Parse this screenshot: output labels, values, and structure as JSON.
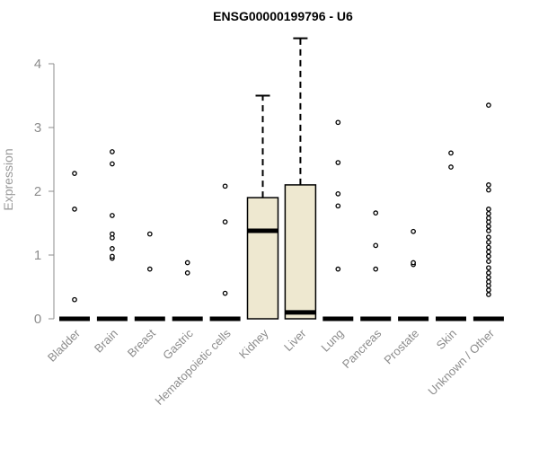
{
  "chart_data": {
    "type": "box",
    "title": "ENSG00000199796 - U6",
    "xlabel": "",
    "ylabel": "Expression",
    "ylim": [
      0,
      4.4
    ],
    "yticks": [
      0,
      1,
      2,
      3,
      4
    ],
    "grid": false,
    "legend": "none",
    "colors": {
      "box_fill": "#EEE8D0",
      "stroke": "#000000",
      "axis": "#8c8c8c"
    },
    "categories": [
      "Bladder",
      "Brain",
      "Breast",
      "Gastric",
      "Hematopoietic cells",
      "Kidney",
      "Liver",
      "Lung",
      "Pancreas",
      "Prostate",
      "Skin",
      "Unknown / Other"
    ],
    "boxes": [
      {
        "category": "Bladder",
        "q1": 0,
        "median": 0,
        "q3": 0,
        "whisker_low": 0,
        "whisker_high": 0,
        "outliers": [
          0.3,
          1.72,
          2.28
        ]
      },
      {
        "category": "Brain",
        "q1": 0,
        "median": 0,
        "q3": 0,
        "whisker_low": 0,
        "whisker_high": 0,
        "outliers": [
          0.95,
          0.98,
          1.1,
          1.27,
          1.33,
          1.62,
          2.43,
          2.62
        ]
      },
      {
        "category": "Breast",
        "q1": 0,
        "median": 0,
        "q3": 0,
        "whisker_low": 0,
        "whisker_high": 0,
        "outliers": [
          0.78,
          1.33
        ]
      },
      {
        "category": "Gastric",
        "q1": 0,
        "median": 0,
        "q3": 0,
        "whisker_low": 0,
        "whisker_high": 0,
        "outliers": [
          0.72,
          0.88
        ]
      },
      {
        "category": "Hematopoietic cells",
        "q1": 0,
        "median": 0,
        "q3": 0,
        "whisker_low": 0,
        "whisker_high": 0,
        "outliers": [
          0.4,
          1.52,
          2.08
        ]
      },
      {
        "category": "Kidney",
        "q1": 0,
        "median": 1.38,
        "q3": 1.9,
        "whisker_low": 0,
        "whisker_high": 3.5,
        "outliers": []
      },
      {
        "category": "Liver",
        "q1": 0,
        "median": 0.1,
        "q3": 2.1,
        "whisker_low": 0,
        "whisker_high": 4.4,
        "outliers": []
      },
      {
        "category": "Lung",
        "q1": 0,
        "median": 0,
        "q3": 0,
        "whisker_low": 0,
        "whisker_high": 0,
        "outliers": [
          0.78,
          1.77,
          1.96,
          2.45,
          3.08
        ]
      },
      {
        "category": "Pancreas",
        "q1": 0,
        "median": 0,
        "q3": 0,
        "whisker_low": 0,
        "whisker_high": 0,
        "outliers": [
          0.78,
          1.15,
          1.66
        ]
      },
      {
        "category": "Prostate",
        "q1": 0,
        "median": 0,
        "q3": 0,
        "whisker_low": 0,
        "whisker_high": 0,
        "outliers": [
          0.85,
          0.88,
          1.37
        ]
      },
      {
        "category": "Skin",
        "q1": 0,
        "median": 0,
        "q3": 0,
        "whisker_low": 0,
        "whisker_high": 0,
        "outliers": [
          2.38,
          2.6
        ]
      },
      {
        "category": "Unknown / Other",
        "q1": 0,
        "median": 0,
        "q3": 0,
        "whisker_low": 0,
        "whisker_high": 0,
        "outliers": [
          0.38,
          0.45,
          0.52,
          0.58,
          0.65,
          0.72,
          0.8,
          0.9,
          0.98,
          1.05,
          1.12,
          1.2,
          1.28,
          1.38,
          1.45,
          1.52,
          1.58,
          1.65,
          1.72,
          2.02,
          2.1,
          3.35
        ]
      }
    ]
  }
}
